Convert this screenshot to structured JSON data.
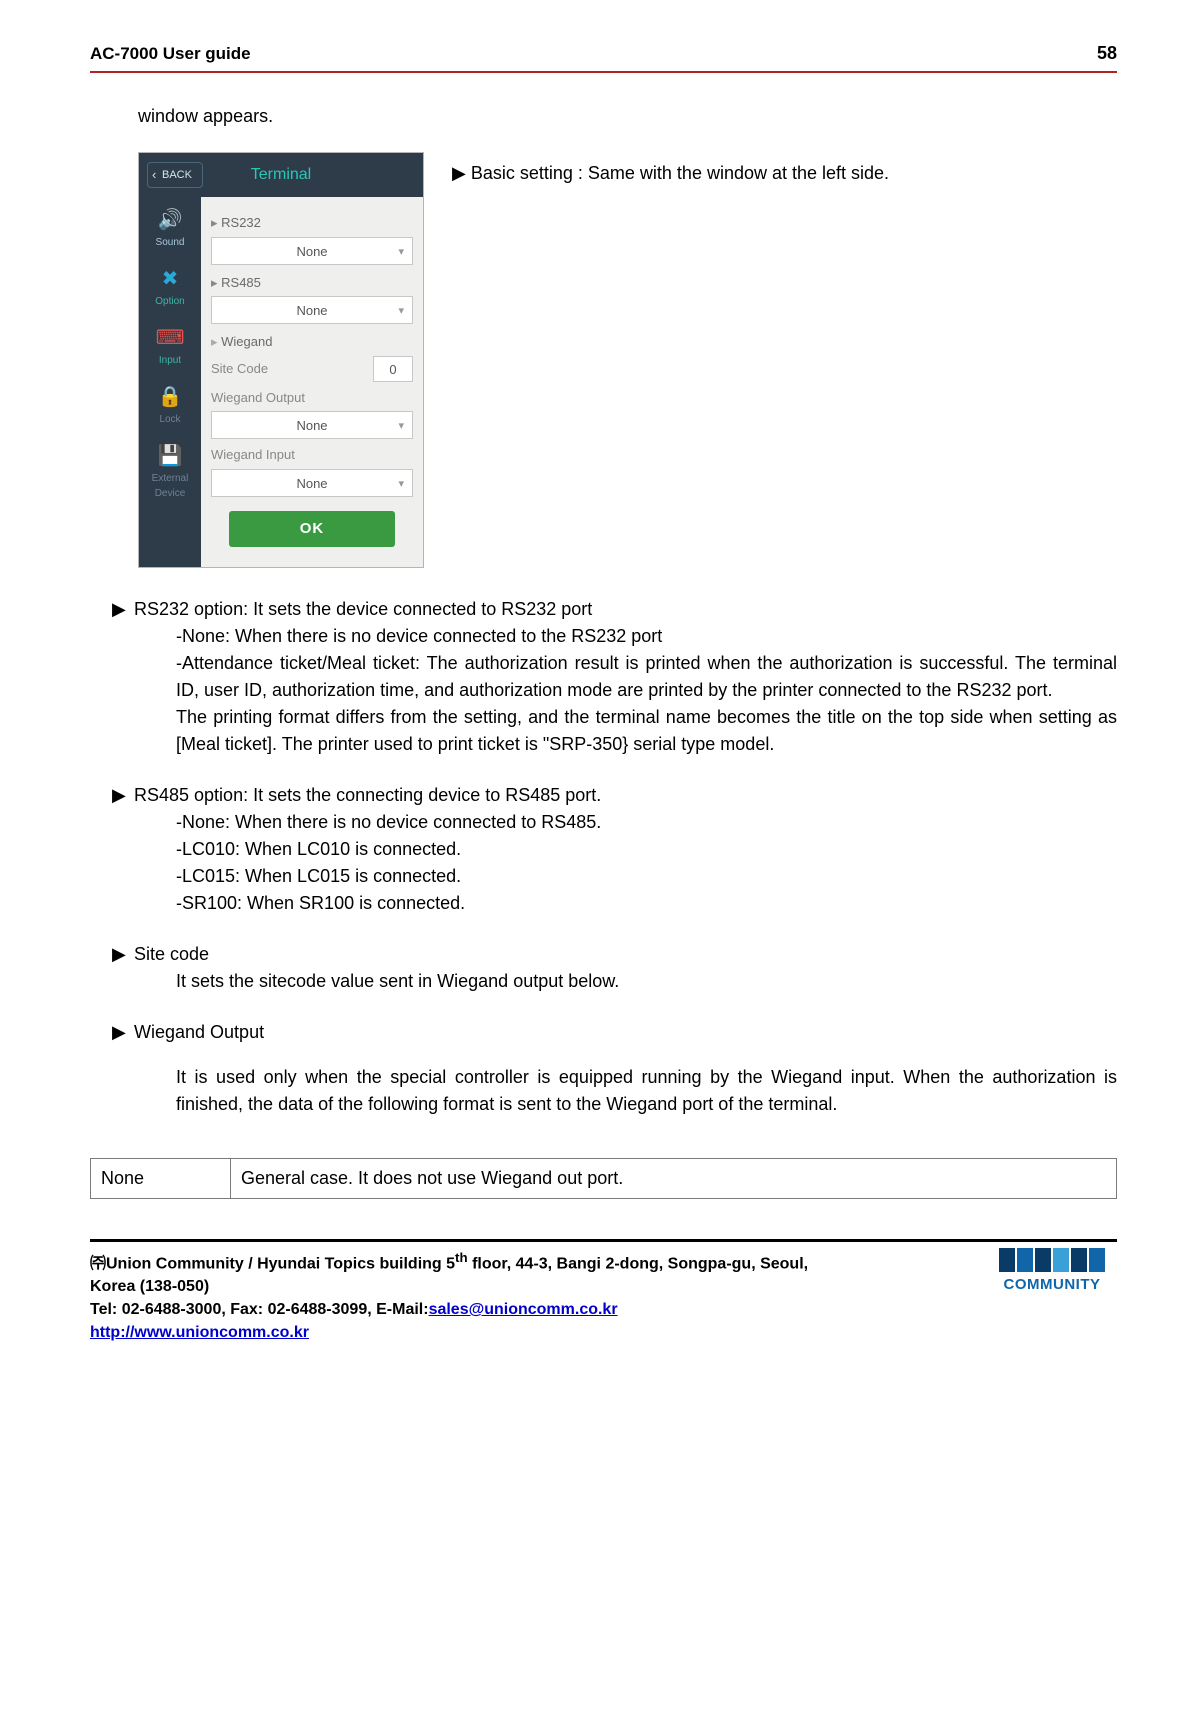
{
  "header": {
    "title": "AC-7000 User guide",
    "page": "58"
  },
  "intro": "window appears.",
  "terminal": {
    "back": "BACK",
    "title": "Terminal",
    "sidebar": [
      {
        "name": "sound",
        "label": "Sound",
        "icon": "🔊",
        "icon_color": "#e23b3b",
        "cls": "active"
      },
      {
        "name": "option",
        "label": "Option",
        "icon": "✖",
        "icon_color": "#2aa9d6",
        "cls": ""
      },
      {
        "name": "input",
        "label": "Input",
        "icon": "⌨",
        "icon_color": "#d9534f",
        "cls": ""
      },
      {
        "name": "lock",
        "label": "Lock",
        "icon": "🔒",
        "icon_color": "#f0b429",
        "cls": "muted"
      },
      {
        "name": "external",
        "label": "External Device",
        "icon": "💾",
        "icon_color": "#6fae5a",
        "cls": "muted"
      }
    ],
    "rs232_label": "RS232",
    "rs232_value": "None",
    "rs485_label": "RS485",
    "rs485_value": "None",
    "wiegand_label": "Wiegand",
    "sitecode_label": "Site Code",
    "sitecode_value": "0",
    "wiegand_output_label": "Wiegand Output",
    "wiegand_output_value": "None",
    "wiegand_input_label": "Wiegand Input",
    "wiegand_input_value": "None",
    "ok": "OK"
  },
  "side_note": "▶ Basic setting : Same with the window at the left side.",
  "sections": {
    "rs232": {
      "head": "RS232 option:   It sets the device connected to RS232 port",
      "lines": [
        "-None: When there is no device connected to the RS232 port",
        "-Attendance ticket/Meal ticket: The authorization result is printed when the authorization is successful.   The terminal ID, user ID, authorization time, and authorization mode are printed by the printer connected to the RS232 port.",
        "The printing format differs from the setting, and the terminal name becomes the title on the top side when setting as [Meal ticket].   The printer used to print ticket is \"SRP-350} serial type model."
      ]
    },
    "rs485": {
      "head": "RS485 option: It sets the connecting device to RS485 port.",
      "lines": [
        "-None: When there is no device connected to RS485.",
        "-LC010: When LC010 is connected.",
        "-LC015: When LC015 is connected.",
        "-SR100: When SR100 is connected."
      ]
    },
    "sitecode": {
      "head": "Site code",
      "body": "It sets the sitecode value sent in Wiegand output below."
    },
    "wout": {
      "head": "Wiegand Output",
      "body": "It is used only when the special controller is equipped running by the Wiegand input. When the authorization is finished, the data of the following format is sent to the Wiegand port of the terminal."
    }
  },
  "table": {
    "c1": "None",
    "c2": "General case.   It does not use Wiegand out port."
  },
  "footer": {
    "l1_a": "㈜Union Community / Hyundai Topics building 5",
    "l1_sup": "th",
    "l1_b": " floor, 44-3, Bangi 2-dong, Songpa-gu, Seoul, Korea (138-050)",
    "l2_a": "Tel: 02-6488-3000, Fax: 02-6488-3099, E-Mail:",
    "l2_link": "sales@unioncomm.co.kr",
    "l3_link": "http://www.unioncomm.co.kr",
    "logo_text": "COMMUNITY",
    "logo_colors": [
      "#0a3a66",
      "#1166aa",
      "#0a3a66",
      "#3aa0d8",
      "#0a3a66",
      "#1166aa"
    ]
  }
}
